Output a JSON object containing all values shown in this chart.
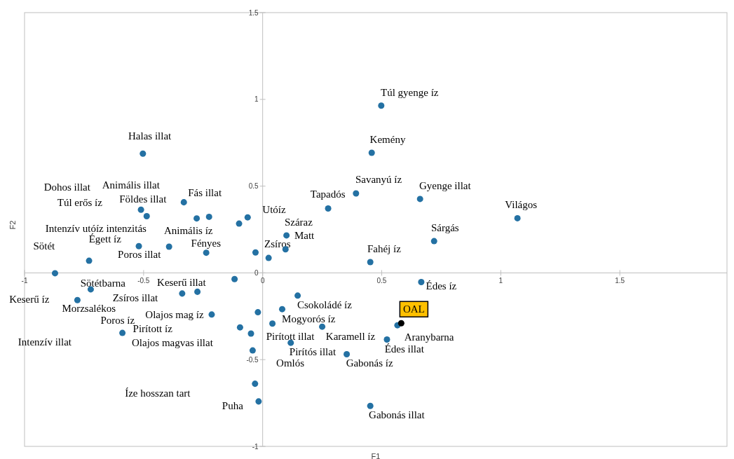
{
  "chart_data": {
    "type": "scatter",
    "xlabel": "F1",
    "ylabel": "F2",
    "xlim": [
      -1,
      1.95
    ],
    "ylim": [
      -1,
      1.5
    ],
    "xticks": [
      -1,
      -0.5,
      0,
      0.5,
      1,
      1.5
    ],
    "yticks": [
      -1,
      -0.5,
      0,
      0.5,
      1,
      1.5
    ],
    "marker": "circle",
    "series": [
      {
        "color": "#2471a3",
        "x": [
          -0.503,
          -0.511,
          -0.487,
          -0.331,
          -0.277,
          -0.225,
          -0.099,
          -0.063,
          -0.52,
          -0.393,
          -0.237,
          -0.03,
          -0.729,
          -0.872,
          0.025,
          0.096,
          0.1,
          0.275,
          0.392,
          0.458,
          0.498,
          0.661,
          0.72,
          0.452,
          1.07,
          0.666,
          -0.722,
          -0.778,
          -0.589,
          -0.338,
          -0.274,
          -0.118,
          -0.214,
          -0.02,
          -0.095,
          -0.049,
          -0.042,
          -0.032,
          -0.017,
          0.147,
          0.082,
          0.041,
          0.25,
          0.118,
          0.353,
          0.566,
          0.522,
          0.452
        ],
        "values": [
          0.687,
          0.364,
          0.327,
          0.407,
          0.314,
          0.323,
          0.284,
          0.32,
          0.154,
          0.151,
          0.116,
          0.118,
          0.07,
          -0.002,
          0.086,
          0.136,
          0.216,
          0.371,
          0.458,
          0.692,
          0.964,
          0.426,
          0.183,
          0.062,
          0.315,
          -0.053,
          -0.095,
          -0.157,
          -0.346,
          -0.119,
          -0.109,
          -0.036,
          -0.24,
          -0.227,
          -0.314,
          -0.35,
          -0.447,
          -0.639,
          -0.741,
          -0.131,
          -0.209,
          -0.292,
          -0.31,
          -0.403,
          -0.469,
          -0.302,
          -0.384,
          -0.767
        ]
      },
      {
        "name": "OAL",
        "color": "#000000",
        "x": [
          0.582
        ],
        "values": [
          -0.29
        ]
      }
    ],
    "annotations": [
      "Halas illat",
      "Dohos illat",
      "Animális illat",
      "Túl erős íz",
      "Földes illat",
      "Fás illat",
      "Intenzív utóíz intenzitás",
      "Égett íz",
      "Animális íz",
      "Sötét",
      "Poros illat",
      "Fényes",
      "Utóíz",
      "Száraz",
      "Matt",
      "Zsíros",
      "Tapadós",
      "Savanyú íz",
      "Kemény",
      "Túl gyenge íz",
      "Gyenge illat",
      "Világos",
      "Sárgás",
      "Fahéj íz",
      "Édes íz",
      "Sötétbarna",
      "Keserű illat",
      "Keserű íz",
      "Zsíros illat",
      "Morzsalékos",
      "Olajos mag íz",
      "Poros íz",
      "Pirított íz",
      "Intenzív illat",
      "Olajos magvas illat",
      "Íze hosszan tart",
      "Puha",
      "Csokoládé íz",
      "Mogyorós íz",
      "Pirított illat",
      "Karamell íz",
      "Pirítós illat",
      "Omlós",
      "Gabonás íz",
      "Aranybarna",
      "Édes illat",
      "Gabonás illat"
    ]
  }
}
